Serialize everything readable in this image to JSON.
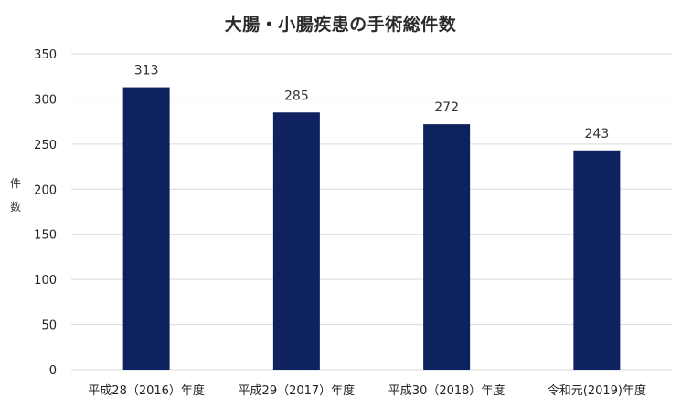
{
  "chart_data": {
    "type": "bar",
    "title": "大腸・小腸疾患の手術総件数",
    "xlabel": "",
    "ylabel": "件数",
    "categories": [
      "平成28（2016）年度",
      "平成29（2017）年度",
      "平成30（2018）年度",
      "令和元(2019)年度"
    ],
    "values": [
      313,
      285,
      272,
      243
    ],
    "data_labels": [
      "313",
      "285",
      "272",
      "243"
    ],
    "ylim": [
      0,
      350
    ],
    "yticks": [
      0,
      50,
      100,
      150,
      200,
      250,
      300,
      350
    ],
    "grid": true,
    "legend": "none",
    "colors": {
      "bar": "#0f2260",
      "grid": "#d9d9d9"
    }
  }
}
